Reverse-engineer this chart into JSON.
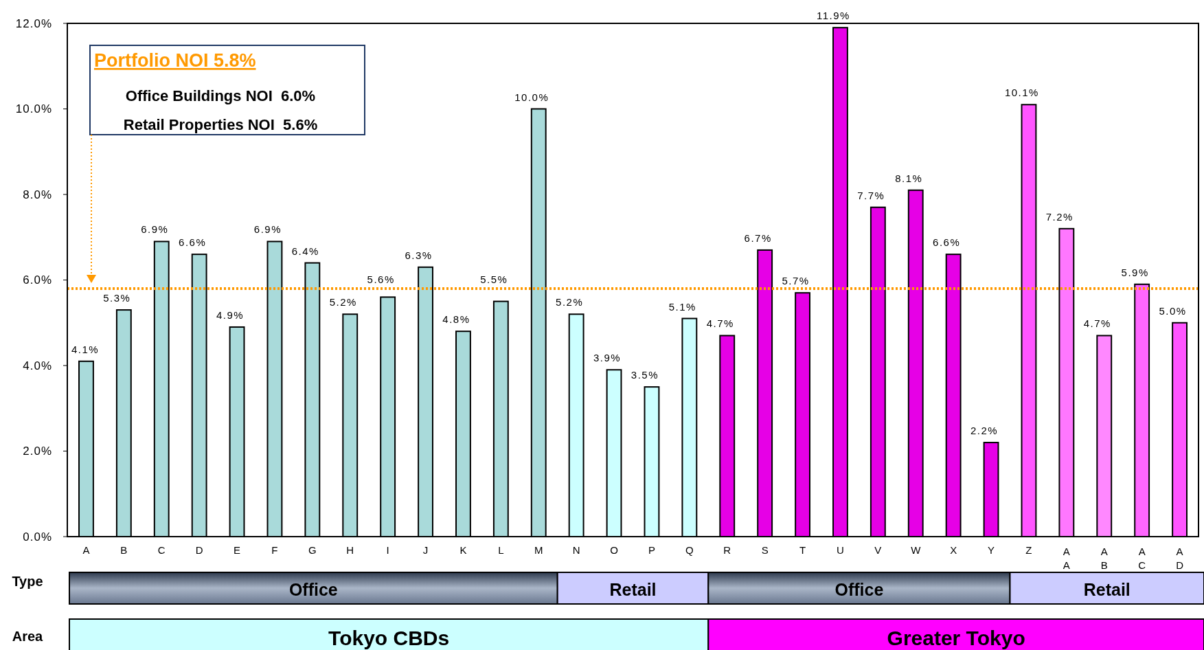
{
  "chart_data": {
    "type": "bar",
    "categories": [
      "A",
      "B",
      "C",
      "D",
      "E",
      "F",
      "G",
      "H",
      "I",
      "J",
      "K",
      "L",
      "M",
      "N",
      "O",
      "P",
      "Q",
      "R",
      "S",
      "T",
      "U",
      "V",
      "W",
      "X",
      "Y",
      "Z",
      "AA",
      "AB",
      "AC",
      "AD"
    ],
    "values": [
      4.1,
      5.3,
      6.9,
      6.6,
      4.9,
      6.9,
      6.4,
      5.2,
      5.6,
      6.3,
      4.8,
      5.5,
      10.0,
      5.2,
      3.9,
      3.5,
      5.1,
      4.7,
      6.7,
      5.7,
      11.9,
      7.7,
      8.1,
      6.6,
      2.2,
      10.1,
      7.2,
      4.7,
      5.9,
      5.0
    ],
    "colors": [
      "#a9dada",
      "#a9dada",
      "#a9dada",
      "#a9dada",
      "#a9dada",
      "#a9dada",
      "#a9dada",
      "#a9dada",
      "#a9dada",
      "#a9dada",
      "#a9dada",
      "#a9dada",
      "#a9dada",
      "#ccffff",
      "#ccffff",
      "#ccffff",
      "#ccffff",
      "#e600e6",
      "#e600e6",
      "#e600e6",
      "#e600e6",
      "#e600e6",
      "#e600e6",
      "#e600e6",
      "#e600e6",
      "#ff55ff",
      "#ff77ff",
      "#ff88ff",
      "#ff66ff",
      "#ff55ff"
    ],
    "value_labels": [
      "4.1%",
      "5.3%",
      "6.9%",
      "6.6%",
      "4.9%",
      "6.9%",
      "6.4%",
      "5.2%",
      "5.6%",
      "6.3%",
      "4.8%",
      "5.5%",
      "10.0%",
      "5.2%",
      "3.9%",
      "3.5%",
      "5.1%",
      "4.7%",
      "6.7%",
      "5.7%",
      "11.9%",
      "7.7%",
      "8.1%",
      "6.6%",
      "2.2%",
      "10.1%",
      "7.2%",
      "4.7%",
      "5.9%",
      "5.0%"
    ],
    "ylim": [
      0,
      12
    ],
    "yticks": [
      {
        "value": 0,
        "label": "0.0%"
      },
      {
        "value": 2,
        "label": "2.0%"
      },
      {
        "value": 4,
        "label": "4.0%"
      },
      {
        "value": 6,
        "label": "6.0%"
      },
      {
        "value": 8,
        "label": "8.0%"
      },
      {
        "value": 10,
        "label": "10.0%"
      },
      {
        "value": 12,
        "label": "12.0%"
      }
    ],
    "ref_lines": [
      {
        "axis": "y",
        "value": 5.8,
        "label": "Portfolio NOI 5.8%",
        "color": "#ff9900",
        "line_style": "dotted"
      }
    ],
    "annotations": [
      "Office Buildings NOI  6.0%",
      "Retail Properties NOI  5.6%",
      "Type",
      "Office",
      "Retail",
      "Office",
      "Retail",
      "Area",
      "Tokyo CBDs",
      "Greater Tokyo"
    ],
    "grid": false
  }
}
